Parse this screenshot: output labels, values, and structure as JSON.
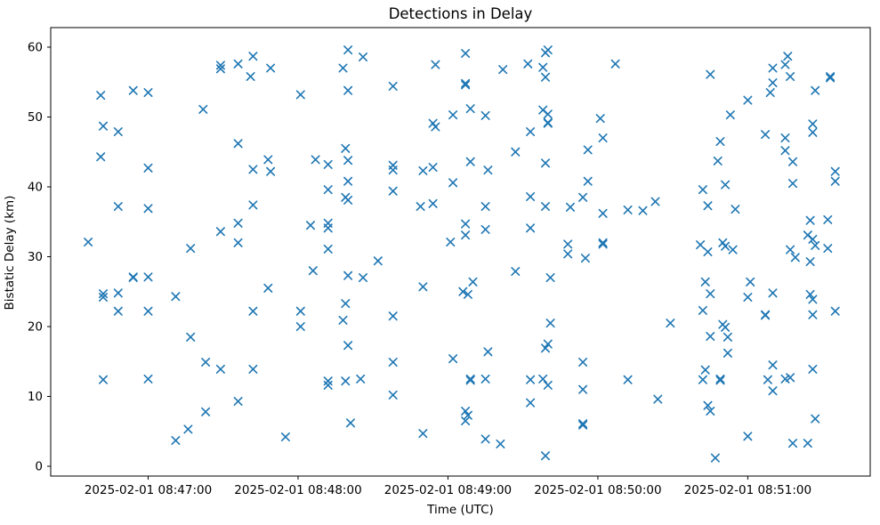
{
  "figure": {
    "title": "Detections in Delay",
    "xlabel": "Time (UTC)",
    "ylabel": "Bistatic Delay (km)"
  },
  "chart_data": {
    "type": "scatter",
    "title": "Detections in Delay",
    "xlabel": "Time (UTC)",
    "ylabel": "Bistatic Delay (km)",
    "marker": "x",
    "marker_color": "#1f77b4",
    "background_color": "#ffffff",
    "grid": false,
    "legend": null,
    "date": "2025-02-01",
    "x_ticks": [
      {
        "time": "08:47:00",
        "label": "2025-02-01 08:47:00"
      },
      {
        "time": "08:48:00",
        "label": "2025-02-01 08:48:00"
      },
      {
        "time": "08:49:00",
        "label": "2025-02-01 08:49:00"
      },
      {
        "time": "08:50:00",
        "label": "2025-02-01 08:50:00"
      },
      {
        "time": "08:51:00",
        "label": "2025-02-01 08:51:00"
      }
    ],
    "y_ticks": [
      0,
      10,
      20,
      30,
      40,
      50,
      60
    ],
    "xlim_time": [
      "08:46:21",
      "08:51:49"
    ],
    "ylim": [
      -1.4,
      62.8
    ],
    "points": [
      [
        "08:46:36",
        32.1
      ],
      [
        "08:46:41",
        53.1
      ],
      [
        "08:46:41",
        44.3
      ],
      [
        "08:46:42",
        48.7
      ],
      [
        "08:46:42",
        24.7
      ],
      [
        "08:46:42",
        24.2
      ],
      [
        "08:46:42",
        12.4
      ],
      [
        "08:46:48",
        47.9
      ],
      [
        "08:46:48",
        37.2
      ],
      [
        "08:46:48",
        24.8
      ],
      [
        "08:46:48",
        22.2
      ],
      [
        "08:46:54",
        53.8
      ],
      [
        "08:46:54",
        27.1
      ],
      [
        "08:46:54",
        27.0
      ],
      [
        "08:47:00",
        53.5
      ],
      [
        "08:47:00",
        42.7
      ],
      [
        "08:47:00",
        36.9
      ],
      [
        "08:47:00",
        27.1
      ],
      [
        "08:47:00",
        22.2
      ],
      [
        "08:47:00",
        12.5
      ],
      [
        "08:47:11",
        24.3
      ],
      [
        "08:47:11",
        3.7
      ],
      [
        "08:47:16",
        5.3
      ],
      [
        "08:47:17",
        31.2
      ],
      [
        "08:47:17",
        18.5
      ],
      [
        "08:47:22",
        51.1
      ],
      [
        "08:47:23",
        14.9
      ],
      [
        "08:47:23",
        7.8
      ],
      [
        "08:47:29",
        57.4
      ],
      [
        "08:47:29",
        56.9
      ],
      [
        "08:47:29",
        33.6
      ],
      [
        "08:47:29",
        13.9
      ],
      [
        "08:47:36",
        57.6
      ],
      [
        "08:47:36",
        46.2
      ],
      [
        "08:47:36",
        34.8
      ],
      [
        "08:47:36",
        32.0
      ],
      [
        "08:47:36",
        9.3
      ],
      [
        "08:47:41",
        55.8
      ],
      [
        "08:47:42",
        58.7
      ],
      [
        "08:47:42",
        42.5
      ],
      [
        "08:47:42",
        37.4
      ],
      [
        "08:47:42",
        22.2
      ],
      [
        "08:47:42",
        13.9
      ],
      [
        "08:47:48",
        43.9
      ],
      [
        "08:47:48",
        25.5
      ],
      [
        "08:47:49",
        57.0
      ],
      [
        "08:47:49",
        42.2
      ],
      [
        "08:47:55",
        4.2
      ],
      [
        "08:48:01",
        53.2
      ],
      [
        "08:48:01",
        22.2
      ],
      [
        "08:48:01",
        20.0
      ],
      [
        "08:48:05",
        34.5
      ],
      [
        "08:48:06",
        28.0
      ],
      [
        "08:48:07",
        43.9
      ],
      [
        "08:48:12",
        43.2
      ],
      [
        "08:48:12",
        39.6
      ],
      [
        "08:48:12",
        34.8
      ],
      [
        "08:48:12",
        34.1
      ],
      [
        "08:48:12",
        31.1
      ],
      [
        "08:48:12",
        12.2
      ],
      [
        "08:48:12",
        11.6
      ],
      [
        "08:48:18",
        57.0
      ],
      [
        "08:48:18",
        20.9
      ],
      [
        "08:48:19",
        45.5
      ],
      [
        "08:48:19",
        38.5
      ],
      [
        "08:48:19",
        23.3
      ],
      [
        "08:48:19",
        12.2
      ],
      [
        "08:48:20",
        59.6
      ],
      [
        "08:48:20",
        53.8
      ],
      [
        "08:48:20",
        43.8
      ],
      [
        "08:48:20",
        40.8
      ],
      [
        "08:48:20",
        38.1
      ],
      [
        "08:48:20",
        27.3
      ],
      [
        "08:48:20",
        17.3
      ],
      [
        "08:48:21",
        6.2
      ],
      [
        "08:48:25",
        12.5
      ],
      [
        "08:48:26",
        58.6
      ],
      [
        "08:48:26",
        27.0
      ],
      [
        "08:48:32",
        29.4
      ],
      [
        "08:48:38",
        54.4
      ],
      [
        "08:48:38",
        43.1
      ],
      [
        "08:48:38",
        42.4
      ],
      [
        "08:48:38",
        39.4
      ],
      [
        "08:48:38",
        21.5
      ],
      [
        "08:48:38",
        14.9
      ],
      [
        "08:48:38",
        10.2
      ],
      [
        "08:48:49",
        37.2
      ],
      [
        "08:48:50",
        42.3
      ],
      [
        "08:48:50",
        25.7
      ],
      [
        "08:48:50",
        4.7
      ],
      [
        "08:48:54",
        49.1
      ],
      [
        "08:48:54",
        42.8
      ],
      [
        "08:48:54",
        37.6
      ],
      [
        "08:48:55",
        57.5
      ],
      [
        "08:48:55",
        48.6
      ],
      [
        "08:49:01",
        32.1
      ],
      [
        "08:49:02",
        50.3
      ],
      [
        "08:49:02",
        40.6
      ],
      [
        "08:49:02",
        15.4
      ],
      [
        "08:49:07",
        59.1
      ],
      [
        "08:49:07",
        54.8
      ],
      [
        "08:49:07",
        54.6
      ],
      [
        "08:49:07",
        34.7
      ],
      [
        "08:49:07",
        33.1
      ],
      [
        "08:49:07",
        7.9
      ],
      [
        "08:49:07",
        6.5
      ],
      [
        "08:49:08",
        7.3
      ],
      [
        "08:49:06",
        25.0
      ],
      [
        "08:49:08",
        24.6
      ],
      [
        "08:49:09",
        51.2
      ],
      [
        "08:49:09",
        43.6
      ],
      [
        "08:49:09",
        12.5
      ],
      [
        "08:49:09",
        12.3
      ],
      [
        "08:49:10",
        26.4
      ],
      [
        "08:49:15",
        50.2
      ],
      [
        "08:49:15",
        37.2
      ],
      [
        "08:49:15",
        33.9
      ],
      [
        "08:49:15",
        12.5
      ],
      [
        "08:49:15",
        3.9
      ],
      [
        "08:49:16",
        42.4
      ],
      [
        "08:49:16",
        16.4
      ],
      [
        "08:49:21",
        3.2
      ],
      [
        "08:49:22",
        56.8
      ],
      [
        "08:49:27",
        45.0
      ],
      [
        "08:49:27",
        27.9
      ],
      [
        "08:49:32",
        57.6
      ],
      [
        "08:49:33",
        47.9
      ],
      [
        "08:49:33",
        38.6
      ],
      [
        "08:49:33",
        34.1
      ],
      [
        "08:49:33",
        12.4
      ],
      [
        "08:49:33",
        9.1
      ],
      [
        "08:49:38",
        57.1
      ],
      [
        "08:49:38",
        51.0
      ],
      [
        "08:49:38",
        12.5
      ],
      [
        "08:49:39",
        59.2
      ],
      [
        "08:49:39",
        55.7
      ],
      [
        "08:49:39",
        43.4
      ],
      [
        "08:49:39",
        37.2
      ],
      [
        "08:49:39",
        16.9
      ],
      [
        "08:49:39",
        1.5
      ],
      [
        "08:49:40",
        59.6
      ],
      [
        "08:49:40",
        50.4
      ],
      [
        "08:49:40",
        49.2
      ],
      [
        "08:49:40",
        49.1
      ],
      [
        "08:49:40",
        17.5
      ],
      [
        "08:49:40",
        11.6
      ],
      [
        "08:49:41",
        27.0
      ],
      [
        "08:49:41",
        20.5
      ],
      [
        "08:49:48",
        31.8
      ],
      [
        "08:49:48",
        30.4
      ],
      [
        "08:49:49",
        37.1
      ],
      [
        "08:49:54",
        38.5
      ],
      [
        "08:49:54",
        14.9
      ],
      [
        "08:49:54",
        11.0
      ],
      [
        "08:49:54",
        6.1
      ],
      [
        "08:49:54",
        5.9
      ],
      [
        "08:49:55",
        29.8
      ],
      [
        "08:49:56",
        45.3
      ],
      [
        "08:49:56",
        40.8
      ],
      [
        "08:50:01",
        49.8
      ],
      [
        "08:50:02",
        47.0
      ],
      [
        "08:50:02",
        36.2
      ],
      [
        "08:50:02",
        32.0
      ],
      [
        "08:50:02",
        31.8
      ],
      [
        "08:50:07",
        57.6
      ],
      [
        "08:50:12",
        36.7
      ],
      [
        "08:50:12",
        12.4
      ],
      [
        "08:50:18",
        36.6
      ],
      [
        "08:50:23",
        37.9
      ],
      [
        "08:50:24",
        9.6
      ],
      [
        "08:50:29",
        20.5
      ],
      [
        "08:50:41",
        31.7
      ],
      [
        "08:50:42",
        39.6
      ],
      [
        "08:50:42",
        22.3
      ],
      [
        "08:50:42",
        12.4
      ],
      [
        "08:50:43",
        26.4
      ],
      [
        "08:50:43",
        13.8
      ],
      [
        "08:50:44",
        37.3
      ],
      [
        "08:50:44",
        30.7
      ],
      [
        "08:50:44",
        8.7
      ],
      [
        "08:50:45",
        56.1
      ],
      [
        "08:50:45",
        24.7
      ],
      [
        "08:50:45",
        18.6
      ],
      [
        "08:50:45",
        7.9
      ],
      [
        "08:50:47",
        1.2
      ],
      [
        "08:50:48",
        43.7
      ],
      [
        "08:50:49",
        46.5
      ],
      [
        "08:50:49",
        12.5
      ],
      [
        "08:50:49",
        12.3
      ],
      [
        "08:50:50",
        32.0
      ],
      [
        "08:50:50",
        20.3
      ],
      [
        "08:50:51",
        40.3
      ],
      [
        "08:50:51",
        31.5
      ],
      [
        "08:50:51",
        19.9
      ],
      [
        "08:50:52",
        18.5
      ],
      [
        "08:50:52",
        16.2
      ],
      [
        "08:50:53",
        50.3
      ],
      [
        "08:50:54",
        31.0
      ],
      [
        "08:50:55",
        36.8
      ],
      [
        "08:51:00",
        52.4
      ],
      [
        "08:51:00",
        24.2
      ],
      [
        "08:51:00",
        4.3
      ],
      [
        "08:51:01",
        26.4
      ],
      [
        "08:51:07",
        47.5
      ],
      [
        "08:51:07",
        21.7
      ],
      [
        "08:51:07",
        21.6
      ],
      [
        "08:51:08",
        12.4
      ],
      [
        "08:51:09",
        53.5
      ],
      [
        "08:51:10",
        57.0
      ],
      [
        "08:51:10",
        54.9
      ],
      [
        "08:51:10",
        24.8
      ],
      [
        "08:51:10",
        14.5
      ],
      [
        "08:51:10",
        10.8
      ],
      [
        "08:51:15",
        57.5
      ],
      [
        "08:51:15",
        47.0
      ],
      [
        "08:51:15",
        45.2
      ],
      [
        "08:51:15",
        12.5
      ],
      [
        "08:51:16",
        58.7
      ],
      [
        "08:51:17",
        55.8
      ],
      [
        "08:51:17",
        31.0
      ],
      [
        "08:51:17",
        12.7
      ],
      [
        "08:51:18",
        43.6
      ],
      [
        "08:51:18",
        40.5
      ],
      [
        "08:51:18",
        3.3
      ],
      [
        "08:51:19",
        29.9
      ],
      [
        "08:51:24",
        33.1
      ],
      [
        "08:51:24",
        3.3
      ],
      [
        "08:51:25",
        35.2
      ],
      [
        "08:51:25",
        29.3
      ],
      [
        "08:51:25",
        24.6
      ],
      [
        "08:51:26",
        49.0
      ],
      [
        "08:51:26",
        47.8
      ],
      [
        "08:51:26",
        32.5
      ],
      [
        "08:51:26",
        23.9
      ],
      [
        "08:51:26",
        21.7
      ],
      [
        "08:51:26",
        13.9
      ],
      [
        "08:51:27",
        53.8
      ],
      [
        "08:51:27",
        31.6
      ],
      [
        "08:51:27",
        6.8
      ],
      [
        "08:51:32",
        35.3
      ],
      [
        "08:51:32",
        31.2
      ],
      [
        "08:51:33",
        55.8
      ],
      [
        "08:51:33",
        55.6
      ],
      [
        "08:51:35",
        42.2
      ],
      [
        "08:51:35",
        40.8
      ],
      [
        "08:51:35",
        22.2
      ]
    ]
  }
}
